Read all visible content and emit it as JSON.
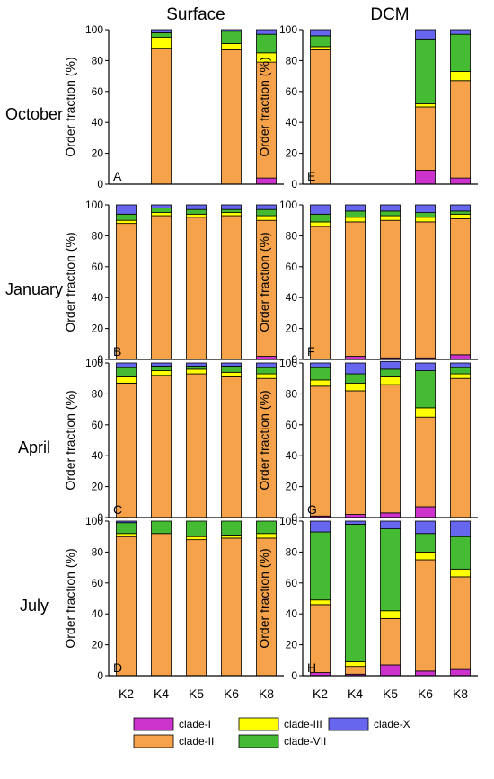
{
  "columns": [
    "Surface",
    "DCM"
  ],
  "rows": [
    "October",
    "January",
    "April",
    "July"
  ],
  "ylabel": "Order fraction (%)",
  "yticks": [
    "0",
    "20",
    "40",
    "60",
    "80",
    "100"
  ],
  "categories": [
    "K2",
    "K4",
    "K5",
    "K6",
    "K8"
  ],
  "panel_letters": [
    "A",
    "E",
    "B",
    "F",
    "C",
    "G",
    "D",
    "H"
  ],
  "legend": [
    {
      "name": "clade-I",
      "color": "#cc33cc"
    },
    {
      "name": "clade-III",
      "color": "#ffff00"
    },
    {
      "name": "clade-X",
      "color": "#6666ee"
    },
    {
      "name": "clade-II",
      "color": "#f5a24a"
    },
    {
      "name": "clade-VII",
      "color": "#44bb33"
    }
  ],
  "chart_data": {
    "type": "bar",
    "stacked": true,
    "ylim": [
      0,
      100
    ],
    "series_order": [
      "clade-I",
      "clade-II",
      "clade-III",
      "clade-VII",
      "clade-X"
    ],
    "colors": {
      "clade-I": "#cc33cc",
      "clade-II": "#f5a24a",
      "clade-III": "#ffff00",
      "clade-VII": "#44bb33",
      "clade-X": "#6666ee"
    },
    "panels": [
      {
        "letter": "A",
        "month": "October",
        "depth": "Surface",
        "bars": {
          "K4": [
            0,
            88,
            7,
            3,
            2
          ],
          "K6": [
            0,
            87,
            4,
            8,
            1
          ],
          "K8": [
            4,
            75,
            6,
            12,
            3
          ]
        }
      },
      {
        "letter": "E",
        "month": "October",
        "depth": "DCM",
        "bars": {
          "K2": [
            0,
            87,
            2,
            7,
            4
          ],
          "K6": [
            9,
            41,
            2,
            42,
            6
          ],
          "K8": [
            4,
            63,
            6,
            24,
            3
          ]
        }
      },
      {
        "letter": "B",
        "month": "January",
        "depth": "Surface",
        "bars": {
          "K2": [
            0,
            88,
            2,
            4,
            6
          ],
          "K4": [
            0,
            93,
            2,
            3,
            2
          ],
          "K5": [
            0,
            92,
            2,
            3,
            3
          ],
          "K6": [
            0,
            93,
            2,
            2,
            3
          ],
          "K8": [
            2,
            88,
            3,
            4,
            3
          ]
        }
      },
      {
        "letter": "F",
        "month": "January",
        "depth": "DCM",
        "bars": {
          "K2": [
            0,
            86,
            3,
            5,
            6
          ],
          "K4": [
            2,
            87,
            3,
            4,
            4
          ],
          "K5": [
            1,
            89,
            3,
            3,
            4
          ],
          "K6": [
            1,
            88,
            3,
            3,
            5
          ],
          "K8": [
            3,
            88,
            3,
            2,
            4
          ]
        }
      },
      {
        "letter": "C",
        "month": "April",
        "depth": "Surface",
        "bars": {
          "K2": [
            0,
            87,
            4,
            6,
            3
          ],
          "K4": [
            0,
            92,
            3,
            3,
            2
          ],
          "K5": [
            0,
            93,
            3,
            2,
            2
          ],
          "K6": [
            0,
            91,
            3,
            4,
            2
          ],
          "K8": [
            0,
            90,
            3,
            4,
            3
          ]
        }
      },
      {
        "letter": "G",
        "month": "April",
        "depth": "DCM",
        "bars": {
          "K2": [
            1,
            84,
            4,
            8,
            3
          ],
          "K4": [
            2,
            80,
            5,
            6,
            7
          ],
          "K5": [
            3,
            83,
            5,
            5,
            5
          ],
          "K6": [
            7,
            58,
            6,
            24,
            5
          ],
          "K8": [
            0,
            90,
            3,
            4,
            3
          ]
        }
      },
      {
        "letter": "D",
        "month": "July",
        "depth": "Surface",
        "bars": {
          "K2": [
            0,
            90,
            2,
            7,
            1
          ],
          "K4": [
            0,
            92,
            0,
            8,
            0
          ],
          "K5": [
            0,
            88,
            2,
            10,
            0
          ],
          "K6": [
            0,
            89,
            2,
            9,
            0
          ],
          "K8": [
            0,
            89,
            3,
            8,
            0
          ]
        }
      },
      {
        "letter": "H",
        "month": "July",
        "depth": "DCM",
        "bars": {
          "K2": [
            2,
            44,
            3,
            44,
            7
          ],
          "K4": [
            1,
            5,
            3,
            89,
            2
          ],
          "K5": [
            7,
            30,
            5,
            53,
            5
          ],
          "K6": [
            3,
            72,
            5,
            12,
            8
          ],
          "K8": [
            4,
            60,
            5,
            21,
            10
          ]
        }
      }
    ]
  }
}
